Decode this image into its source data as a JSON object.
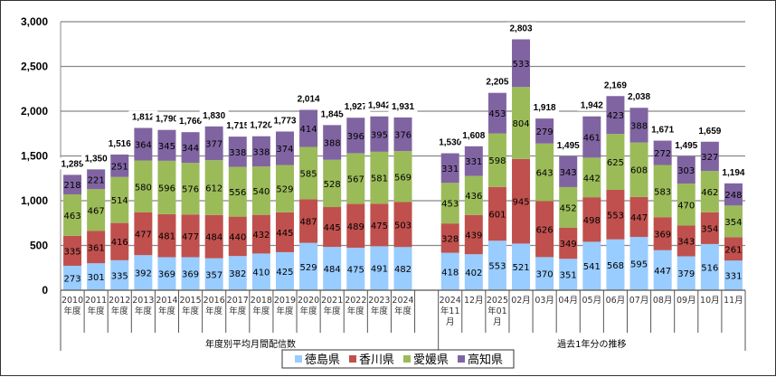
{
  "chart_data": {
    "type": "bar",
    "stacked": true,
    "title": "",
    "xlabel": "",
    "ylabel": "",
    "ylim": [
      0,
      3000
    ],
    "yticks": [
      0,
      500,
      1000,
      1500,
      2000,
      2500,
      3000
    ],
    "ytick_labels": [
      "0",
      "500",
      "1,000",
      "1,500",
      "2,000",
      "2,500",
      "3,000"
    ],
    "grid": true,
    "legend_position": "bottom",
    "series": [
      {
        "name": "徳島県",
        "color": "#99ccff",
        "values": [
          273,
          301,
          335,
          392,
          369,
          369,
          357,
          382,
          410,
          425,
          529,
          484,
          475,
          491,
          482,
          418,
          402,
          553,
          521,
          370,
          351,
          541,
          568,
          595,
          447,
          379,
          516,
          331
        ]
      },
      {
        "name": "香川県",
        "color": "#c0504d",
        "values": [
          335,
          361,
          416,
          477,
          481,
          477,
          484,
          440,
          432,
          445,
          487,
          445,
          489,
          475,
          503,
          328,
          439,
          601,
          945,
          626,
          349,
          498,
          553,
          447,
          369,
          343,
          354,
          261
        ]
      },
      {
        "name": "愛媛県",
        "color": "#9bbb59",
        "values": [
          463,
          467,
          514,
          580,
          596,
          576,
          612,
          556,
          540,
          529,
          585,
          528,
          567,
          581,
          569,
          453,
          436,
          598,
          804,
          643,
          452,
          442,
          625,
          608,
          583,
          470,
          462,
          354
        ]
      },
      {
        "name": "高知県",
        "color": "#8064a2",
        "values": [
          218,
          221,
          251,
          364,
          345,
          344,
          377,
          338,
          338,
          374,
          414,
          388,
          396,
          395,
          376,
          331,
          331,
          453,
          533,
          279,
          343,
          461,
          423,
          388,
          272,
          303,
          327,
          248
        ]
      }
    ],
    "totals": [
      1289,
      1350,
      1516,
      1812,
      1790,
      1766,
      1830,
      1715,
      1720,
      1773,
      2014,
      1845,
      1927,
      1942,
      1931,
      1530,
      1608,
      2205,
      2803,
      1918,
      1495,
      1942,
      2169,
      2038,
      1671,
      1495,
      1659,
      1194
    ],
    "total_labels": [
      "1,289",
      "1,350",
      "1,516",
      "1,812",
      "1,790",
      "1,766",
      "1,830",
      "1,715",
      "1,720",
      "1,773",
      "2,014",
      "1,845",
      "1,927",
      "1,942",
      "1,931",
      "1,530",
      "1,608",
      "2,205",
      "2,803",
      "1,918",
      "1,495",
      "1,942",
      "2,169",
      "2,038",
      "1,671",
      "1,495",
      "1,659",
      "1,194"
    ],
    "categories": [
      [
        "2010",
        "年度"
      ],
      [
        "2011",
        "年度"
      ],
      [
        "2012",
        "年度"
      ],
      [
        "2013",
        "年度"
      ],
      [
        "2014",
        "年度"
      ],
      [
        "2015",
        "年度"
      ],
      [
        "2016",
        "年度"
      ],
      [
        "2017",
        "年度"
      ],
      [
        "2018",
        "年度"
      ],
      [
        "2019",
        "年度"
      ],
      [
        "2020",
        "年度"
      ],
      [
        "2021",
        "年度"
      ],
      [
        "2022",
        "年度"
      ],
      [
        "2023",
        "年度"
      ],
      [
        "2024",
        "年度"
      ],
      [
        "2024",
        "年11",
        "月"
      ],
      [
        "12月"
      ],
      [
        "2025",
        "年01",
        "月"
      ],
      [
        "02月"
      ],
      [
        "03月"
      ],
      [
        "04月"
      ],
      [
        "05月"
      ],
      [
        "06月"
      ],
      [
        "07月"
      ],
      [
        "08月"
      ],
      [
        "09月"
      ],
      [
        "10月"
      ],
      [
        "11月"
      ]
    ],
    "groups": [
      {
        "label": "年度別平均月間配信数",
        "count": 15
      },
      {
        "label": "過去1年分の推移",
        "count": 13
      }
    ]
  }
}
